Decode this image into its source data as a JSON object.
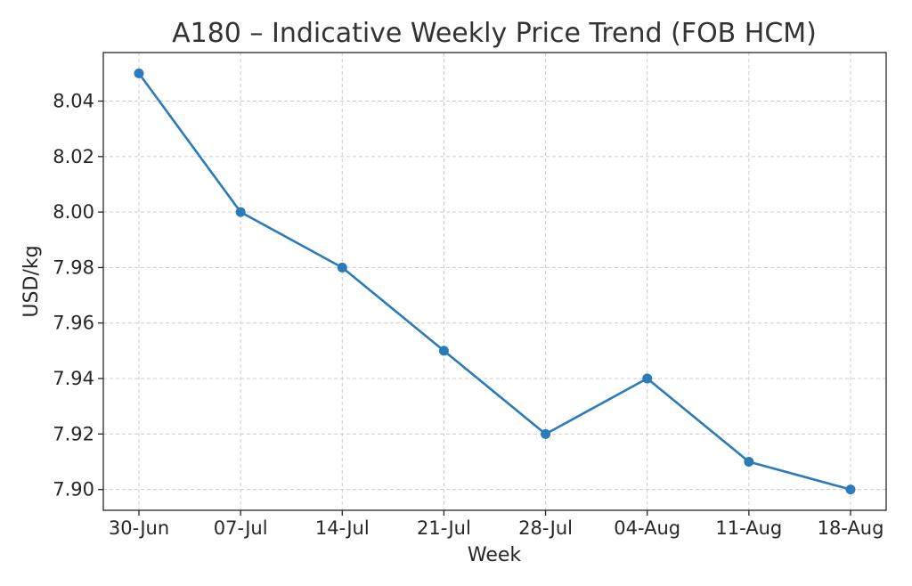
{
  "chart_data": {
    "type": "line",
    "title": "A180 – Indicative Weekly Price Trend (FOB HCM)",
    "xlabel": "Week",
    "ylabel": "USD/kg",
    "categories": [
      "30-Jun",
      "07-Jul",
      "14-Jul",
      "21-Jul",
      "28-Jul",
      "04-Aug",
      "11-Aug",
      "18-Aug"
    ],
    "series": [
      {
        "values": [
          8.05,
          8.0,
          7.98,
          7.95,
          7.92,
          7.94,
          7.91,
          7.9
        ]
      }
    ],
    "ylim": [
      7.8925,
      8.0575
    ],
    "yticks": [
      7.9,
      7.92,
      7.94,
      7.96,
      7.98,
      8.0,
      8.02,
      8.04
    ],
    "ytick_labels": [
      "7.90",
      "7.92",
      "7.94",
      "7.96",
      "7.98",
      "8.00",
      "8.02",
      "8.04"
    ],
    "grid": true,
    "legend": "none",
    "colors": {
      "line": "#2b7bba",
      "marker": "#2b7bba"
    }
  }
}
